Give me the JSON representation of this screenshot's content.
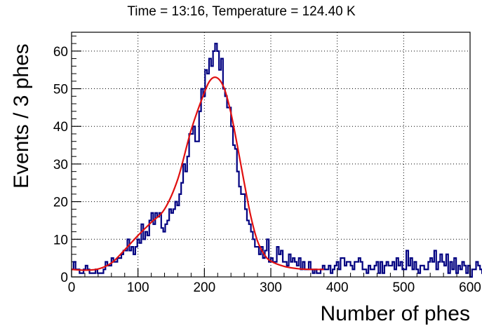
{
  "chart_data": {
    "type": "histogram",
    "title": "Time = 13:16, Temperature = 124.40 K",
    "xlabel": "Number of phes",
    "ylabel": "Events / 3 phes",
    "xlim": [
      0,
      600
    ],
    "ylim": [
      0,
      65
    ],
    "grid": true,
    "bin_width": 3,
    "x_ticks": [
      0,
      100,
      200,
      300,
      400,
      500,
      600
    ],
    "y_ticks": [
      0,
      10,
      20,
      30,
      40,
      50,
      60
    ],
    "histogram": {
      "color": "#000080",
      "counts": [
        2,
        4,
        2,
        2,
        1,
        1,
        2,
        3,
        2,
        1,
        1,
        1,
        2,
        1,
        1,
        1,
        2,
        4,
        3,
        3,
        5,
        4,
        4,
        5,
        5,
        6,
        7,
        7,
        10,
        7,
        8,
        6,
        8,
        10,
        9,
        14,
        10,
        12,
        11,
        15,
        17,
        14,
        17,
        16,
        17,
        13,
        12,
        14,
        15,
        18,
        17,
        18,
        20,
        19,
        22,
        25,
        30,
        28,
        32,
        38,
        38,
        40,
        36,
        36,
        44,
        50,
        48,
        55,
        54,
        58,
        56,
        60,
        62,
        60,
        55,
        58,
        50,
        48,
        45,
        45,
        40,
        35,
        34,
        28,
        24,
        22,
        22,
        18,
        15,
        14,
        12,
        10,
        8,
        8,
        6,
        8,
        5,
        7,
        10,
        4,
        5,
        4,
        4,
        8,
        6,
        7,
        4,
        4,
        3,
        6,
        4,
        5,
        4,
        3,
        5,
        2,
        4,
        2,
        2,
        4,
        2,
        1,
        2,
        1,
        1,
        2,
        3,
        2,
        2,
        3,
        1,
        2,
        3,
        4,
        2,
        5,
        5,
        3,
        4,
        4,
        3,
        2,
        4,
        4,
        5,
        4,
        2,
        2,
        1,
        3,
        2,
        2,
        3,
        4,
        1,
        4,
        1,
        3,
        4,
        3,
        3,
        4,
        2,
        5,
        3,
        4,
        2,
        2,
        7,
        3,
        5,
        2,
        4,
        2,
        1,
        3,
        3,
        2,
        2,
        4,
        5,
        4,
        7,
        2,
        4,
        6,
        4,
        3,
        6,
        1,
        4,
        2,
        5,
        1,
        3,
        2,
        4,
        3,
        1,
        3,
        0,
        2,
        2,
        4,
        3,
        2,
        1,
        2
      ]
    },
    "fit": {
      "color": "#e01010",
      "x": [
        0,
        20,
        40,
        60,
        80,
        100,
        120,
        140,
        160,
        180,
        200,
        210,
        220,
        230,
        240,
        250,
        260,
        270,
        280,
        290,
        300,
        320,
        340,
        360,
        380
      ],
      "y": [
        2,
        1.8,
        2.1,
        3.7,
        7.2,
        11,
        14.5,
        18,
        26,
        39,
        49,
        52.5,
        52.8,
        50,
        43.5,
        34.5,
        25,
        16,
        9.5,
        6,
        4.2,
        2.8,
        2.2,
        2,
        2
      ]
    }
  }
}
